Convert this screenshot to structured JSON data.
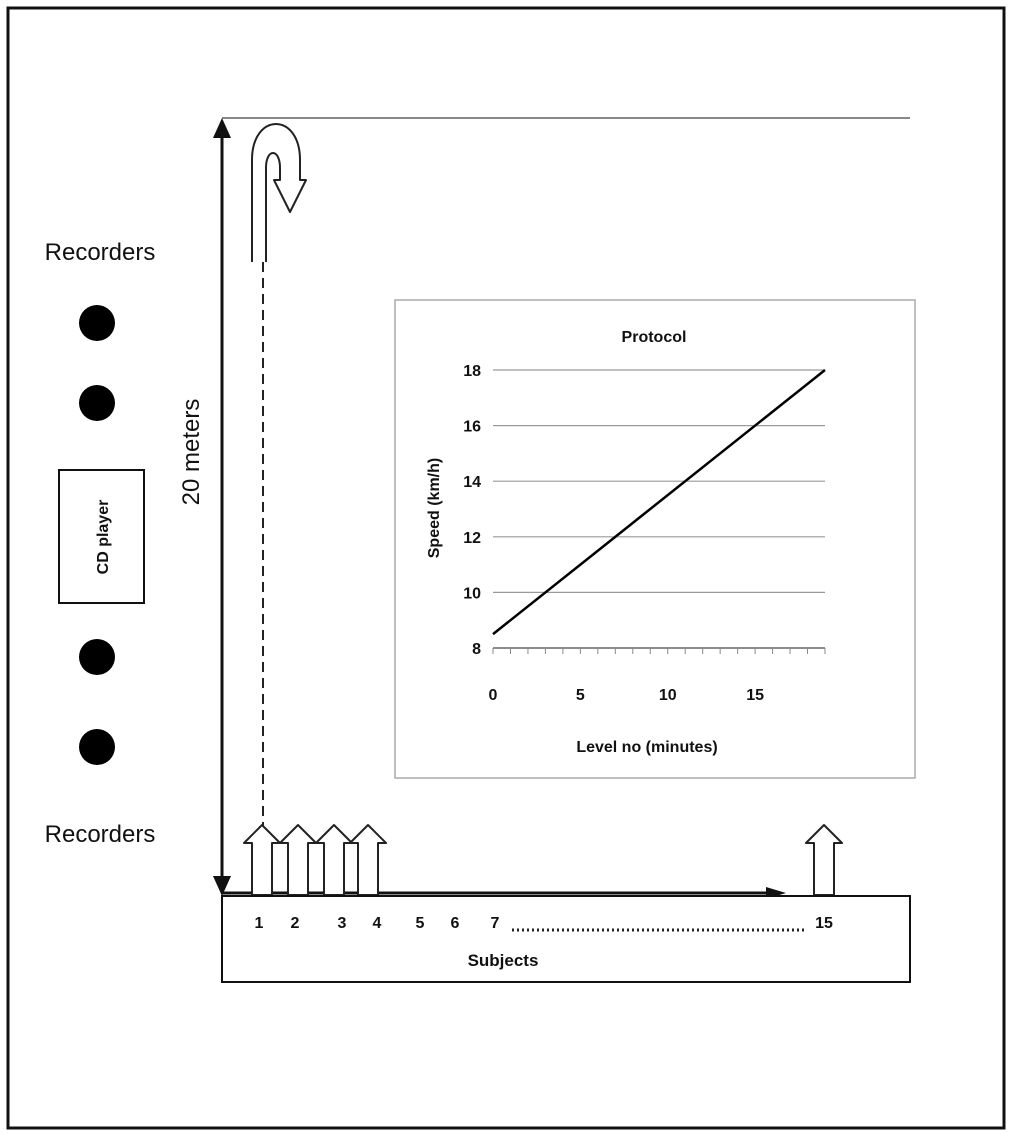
{
  "diagram": {
    "recorders_top_label": "Recorders",
    "recorders_bottom_label": "Recorders",
    "cd_player_label": "CD player",
    "distance_label": "20 meters",
    "subjects_label": "Subjects",
    "subject_numbers": [
      "1",
      "2",
      "3",
      "4",
      "5",
      "6",
      "7",
      "15"
    ]
  },
  "chart_data": {
    "type": "line",
    "title": "Protocol",
    "xlabel": "Level no (minutes)",
    "ylabel": "Speed (km/h)",
    "xlim": [
      0,
      19
    ],
    "ylim": [
      8,
      18
    ],
    "x_ticks": [
      0,
      5,
      10,
      15
    ],
    "y_ticks": [
      8,
      10,
      12,
      14,
      16,
      18
    ],
    "grid": "horizontal",
    "series": [
      {
        "x": [
          0,
          19
        ],
        "y": [
          8.5,
          18
        ]
      }
    ]
  }
}
